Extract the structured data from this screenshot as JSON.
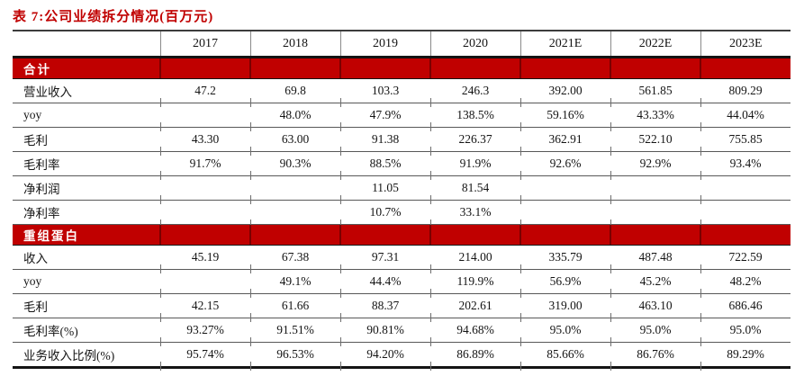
{
  "colors": {
    "accent_red": "#C00000",
    "band_text": "#FFFFFF",
    "thick_line": "#141414",
    "row_line": "#585858",
    "text": "#141414",
    "background": "#FFFFFF"
  },
  "table": {
    "title": "表 7:公司业绩拆分情况(百万元)",
    "columns": [
      "",
      "2017",
      "2018",
      "2019",
      "2020",
      "2021E",
      "2022E",
      "2023E"
    ],
    "sections": [
      {
        "header": "合计",
        "rows": [
          {
            "label": "营业收入",
            "values": [
              "47.2",
              "69.8",
              "103.3",
              "246.3",
              "392.00",
              "561.85",
              "809.29"
            ]
          },
          {
            "label": "yoy",
            "values": [
              "",
              "48.0%",
              "47.9%",
              "138.5%",
              "59.16%",
              "43.33%",
              "44.04%"
            ]
          },
          {
            "label": "毛利",
            "values": [
              "43.30",
              "63.00",
              "91.38",
              "226.37",
              "362.91",
              "522.10",
              "755.85"
            ]
          },
          {
            "label": "毛利率",
            "values": [
              "91.7%",
              "90.3%",
              "88.5%",
              "91.9%",
              "92.6%",
              "92.9%",
              "93.4%"
            ]
          },
          {
            "label": "净利润",
            "values": [
              "",
              "",
              "11.05",
              "81.54",
              "",
              "",
              ""
            ]
          },
          {
            "label": "净利率",
            "values": [
              "",
              "",
              "10.7%",
              "33.1%",
              "",
              "",
              ""
            ]
          }
        ]
      },
      {
        "header": "重组蛋白",
        "rows": [
          {
            "label": "收入",
            "values": [
              "45.19",
              "67.38",
              "97.31",
              "214.00",
              "335.79",
              "487.48",
              "722.59"
            ]
          },
          {
            "label": "yoy",
            "values": [
              "",
              "49.1%",
              "44.4%",
              "119.9%",
              "56.9%",
              "45.2%",
              "48.2%"
            ]
          },
          {
            "label": "毛利",
            "values": [
              "42.15",
              "61.66",
              "88.37",
              "202.61",
              "319.00",
              "463.10",
              "686.46"
            ]
          },
          {
            "label": "毛利率(%)",
            "values": [
              "93.27%",
              "91.51%",
              "90.81%",
              "94.68%",
              "95.0%",
              "95.0%",
              "95.0%"
            ]
          },
          {
            "label": "业务收入比例(%)",
            "values": [
              "95.74%",
              "96.53%",
              "94.20%",
              "86.89%",
              "85.66%",
              "86.76%",
              "89.29%"
            ]
          }
        ]
      }
    ]
  }
}
